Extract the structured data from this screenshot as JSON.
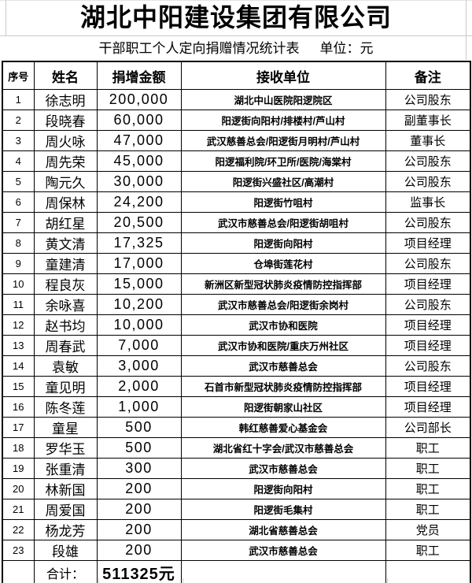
{
  "title": "湖北中阳建设集团有限公司",
  "subtitle": {
    "text": "干部职工个人定向捐赠情况统计表",
    "unit": "单位：元"
  },
  "columns": [
    "序号",
    "姓名",
    "捐增金额",
    "接收单位",
    "备注"
  ],
  "rows": [
    {
      "no": "1",
      "name": "徐志明",
      "amount": "200,000",
      "recipient": "湖北中山医院阳逻院区",
      "note": "公司股东"
    },
    {
      "no": "2",
      "name": "段晓春",
      "amount": "60,000",
      "recipient": "阳逻街向阳村/排楼村/芦山村",
      "note": "副董事长"
    },
    {
      "no": "3",
      "name": "周火咏",
      "amount": "47,000",
      "recipient": "武汉慈善总会/阳逻街月明村/芦山村",
      "note": "董事长"
    },
    {
      "no": "4",
      "name": "周先荣",
      "amount": "45,000",
      "recipient": "阳逻福利院/环卫所/医院/海棠村",
      "note": "公司股东"
    },
    {
      "no": "5",
      "name": "陶元久",
      "amount": "30,000",
      "recipient": "阳逻街兴盛社区/高潮村",
      "note": "公司股东"
    },
    {
      "no": "6",
      "name": "周保林",
      "amount": "24,200",
      "recipient": "阳逻街竹咀村",
      "note": "监事长"
    },
    {
      "no": "7",
      "name": "胡红星",
      "amount": "20,500",
      "recipient": "武汉市慈善总会/阳逻街胡咀村",
      "note": "公司股东"
    },
    {
      "no": "8",
      "name": "黄文清",
      "amount": "17,325",
      "recipient": "阳逻街向阳村",
      "note": "项目经理"
    },
    {
      "no": "9",
      "name": "童建清",
      "amount": "17,000",
      "recipient": "仓埠街莲花村",
      "note": "公司股东"
    },
    {
      "no": "10",
      "name": "程良灰",
      "amount": "15,000",
      "recipient": "新洲区新型冠状肺炎疫情防控指挥部",
      "note": "项目经理"
    },
    {
      "no": "11",
      "name": "余咏喜",
      "amount": "10,200",
      "recipient": "武汉市慈善总会/阳逻街余岗村",
      "note": "公司股东"
    },
    {
      "no": "12",
      "name": "赵书均",
      "amount": "10,000",
      "recipient": "武汉市协和医院",
      "note": "项目经理"
    },
    {
      "no": "13",
      "name": "周春武",
      "amount": "7,000",
      "recipient": "武汉市协和医院/重庆万州社区",
      "note": "项目经理"
    },
    {
      "no": "14",
      "name": "袁敏",
      "amount": "3,000",
      "recipient": "武汉市慈善总会",
      "note": "公司股东"
    },
    {
      "no": "15",
      "name": "童见明",
      "amount": "2,000",
      "recipient": "石首市新型冠状肺炎疫情防控指挥部",
      "note": "项目经理"
    },
    {
      "no": "16",
      "name": "陈冬莲",
      "amount": "1,000",
      "recipient": "阳逻街朝家山社区",
      "note": "项目经理"
    },
    {
      "no": "17",
      "name": "童星",
      "amount": "500",
      "recipient": "韩红慈善爱心基金会",
      "note": "公司部长"
    },
    {
      "no": "18",
      "name": "罗华玉",
      "amount": "500",
      "recipient": "湖北省红十字会/武汉市慈善总会",
      "note": "职工"
    },
    {
      "no": "19",
      "name": "张重清",
      "amount": "300",
      "recipient": "武汉市慈善总会",
      "note": "职工"
    },
    {
      "no": "20",
      "name": "林新国",
      "amount": "200",
      "recipient": "阳逻街向阳村",
      "note": "职工"
    },
    {
      "no": "21",
      "name": "周爱国",
      "amount": "200",
      "recipient": "阳逻街毛集村",
      "note": "职工"
    },
    {
      "no": "22",
      "name": "杨龙芳",
      "amount": "200",
      "recipient": "湖北省慈善总会",
      "note": "党员"
    },
    {
      "no": "23",
      "name": "段雄",
      "amount": "200",
      "recipient": "武汉市慈善总会",
      "note": "职工"
    }
  ],
  "total": {
    "label": "合计：",
    "amount": "511325元"
  },
  "colors": {
    "table_border": "#000000",
    "gridline": "#c9c9c9",
    "background": "#ffffff",
    "text": "#000000"
  }
}
